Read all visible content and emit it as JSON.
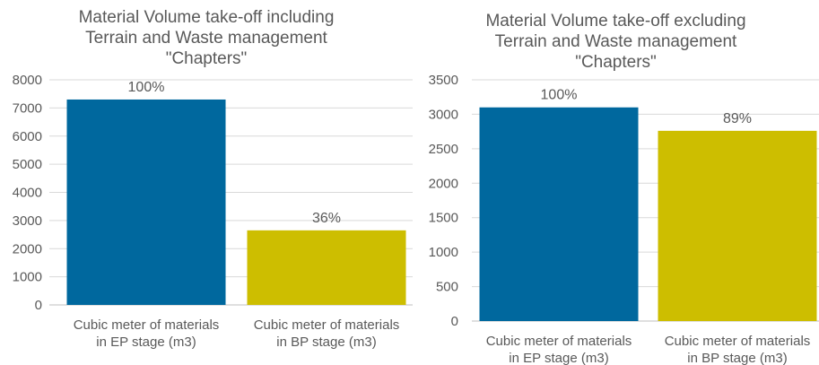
{
  "chart_data": [
    {
      "type": "bar",
      "title": "Material Volume take-off including\nTerrain and Waste management\n\"Chapters\"",
      "categories": [
        "Cubic meter of materials\nin EP stage (m3)",
        "Cubic meter of materials\nin BP stage (m3)"
      ],
      "values": [
        7300,
        2650
      ],
      "data_labels": [
        "100%",
        "36%"
      ],
      "colors": [
        "#00689E",
        "#CDBE00"
      ],
      "ylim": [
        0,
        8000
      ],
      "yticks": [
        0,
        1000,
        2000,
        3000,
        4000,
        5000,
        6000,
        7000,
        8000
      ],
      "ytick_labels": [
        "0",
        "1000",
        "2000",
        "3000",
        "4000",
        "5000",
        "6000",
        "7000",
        "8000"
      ],
      "grid": true
    },
    {
      "type": "bar",
      "title": "Material Volume take-off excluding\nTerrain and Waste management\n\"Chapters\"",
      "categories": [
        "Cubic meter of materials\nin EP stage (m3)",
        "Cubic meter of materials\nin BP stage (m3)"
      ],
      "values": [
        3100,
        2760
      ],
      "data_labels": [
        "100%",
        "89%"
      ],
      "colors": [
        "#00689E",
        "#CDBE00"
      ],
      "ylim": [
        0,
        3500
      ],
      "yticks": [
        0,
        500,
        1000,
        1500,
        2000,
        2500,
        3000,
        3500
      ],
      "ytick_labels": [
        "0",
        "500",
        "1000",
        "1500",
        "2000",
        "2500",
        "3000",
        "3500"
      ],
      "grid": true
    }
  ]
}
